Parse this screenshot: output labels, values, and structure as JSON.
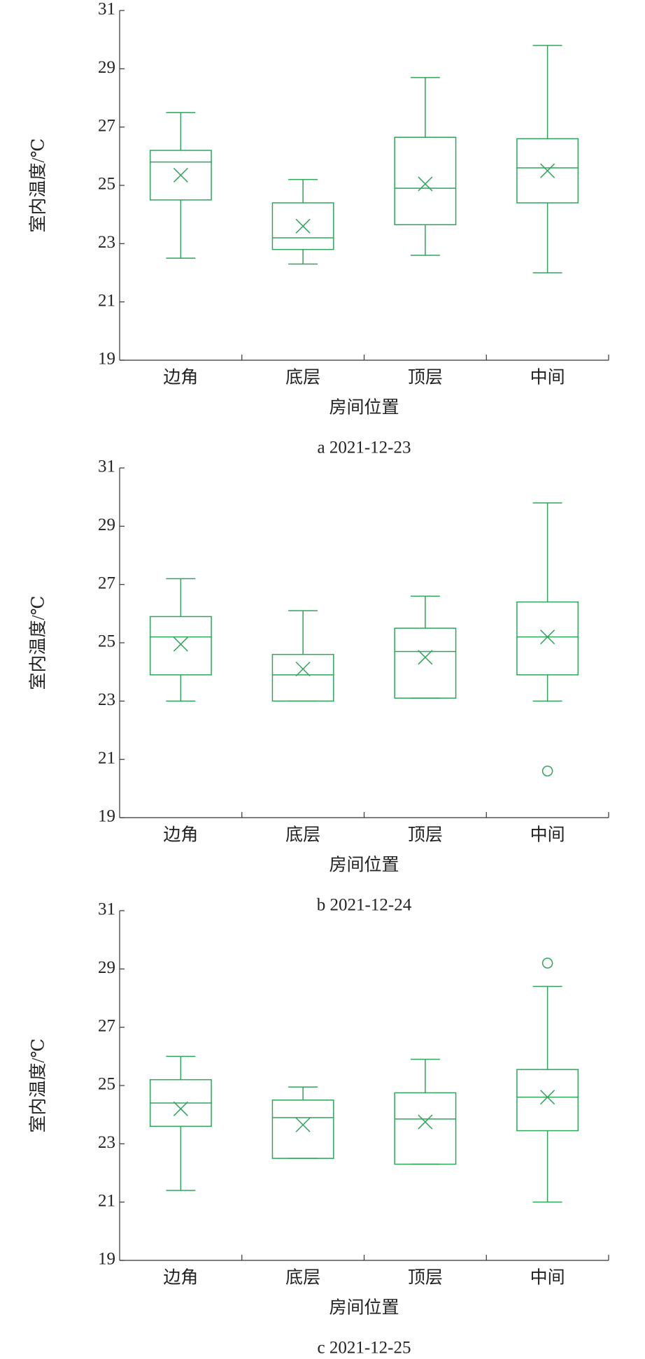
{
  "chart_data": [
    {
      "type": "box",
      "caption": "a 2021-12-23",
      "y_label": "室内温度/℃",
      "x_label": "房间位置",
      "categories": [
        "边角",
        "底层",
        "顶层",
        "中间"
      ],
      "color": "#2ea55a",
      "ylim": [
        19,
        31
      ],
      "yticks": [
        19,
        21,
        23,
        25,
        27,
        29,
        31
      ],
      "boxes": [
        {
          "min": 22.5,
          "q1": 24.5,
          "median": 25.8,
          "q3": 26.2,
          "max": 27.5,
          "mean": 25.35,
          "outliers": []
        },
        {
          "min": 22.3,
          "q1": 22.8,
          "median": 23.2,
          "q3": 24.4,
          "max": 25.2,
          "mean": 23.6,
          "outliers": []
        },
        {
          "min": 22.6,
          "q1": 23.65,
          "median": 24.9,
          "q3": 26.65,
          "max": 28.7,
          "mean": 25.05,
          "outliers": []
        },
        {
          "min": 22.0,
          "q1": 24.4,
          "median": 25.6,
          "q3": 26.6,
          "max": 29.8,
          "mean": 25.5,
          "outliers": []
        }
      ]
    },
    {
      "type": "box",
      "caption": "b 2021-12-24",
      "y_label": "室内温度/℃",
      "x_label": "房间位置",
      "categories": [
        "边角",
        "底层",
        "顶层",
        "中间"
      ],
      "color": "#2ea55a",
      "ylim": [
        19,
        31
      ],
      "yticks": [
        19,
        21,
        23,
        25,
        27,
        29,
        31
      ],
      "boxes": [
        {
          "min": 23.0,
          "q1": 23.9,
          "median": 25.2,
          "q3": 25.9,
          "max": 27.2,
          "mean": 24.95,
          "outliers": []
        },
        {
          "min": 23.0,
          "q1": 23.0,
          "median": 23.9,
          "q3": 24.6,
          "max": 26.1,
          "mean": 24.1,
          "outliers": []
        },
        {
          "min": 23.1,
          "q1": 23.1,
          "median": 24.7,
          "q3": 25.5,
          "max": 26.6,
          "mean": 24.5,
          "outliers": []
        },
        {
          "min": 23.0,
          "q1": 23.9,
          "median": 25.2,
          "q3": 26.4,
          "max": 29.8,
          "mean": 25.2,
          "outliers": [
            20.6
          ]
        }
      ]
    },
    {
      "type": "box",
      "caption": "c 2021-12-25",
      "y_label": "室内温度/℃",
      "x_label": "房间位置",
      "categories": [
        "边角",
        "底层",
        "顶层",
        "中间"
      ],
      "color": "#2ea55a",
      "ylim": [
        19,
        31
      ],
      "yticks": [
        19,
        21,
        23,
        25,
        27,
        29,
        31
      ],
      "boxes": [
        {
          "min": 21.4,
          "q1": 23.6,
          "median": 24.4,
          "q3": 25.2,
          "max": 26.0,
          "mean": 24.2,
          "outliers": []
        },
        {
          "min": 22.5,
          "q1": 22.5,
          "median": 23.9,
          "q3": 24.5,
          "max": 24.95,
          "mean": 23.65,
          "outliers": []
        },
        {
          "min": 22.3,
          "q1": 22.3,
          "median": 23.85,
          "q3": 24.75,
          "max": 25.9,
          "mean": 23.75,
          "outliers": []
        },
        {
          "min": 21.0,
          "q1": 23.45,
          "median": 24.6,
          "q3": 25.55,
          "max": 28.4,
          "mean": 24.6,
          "outliers": [
            29.2
          ]
        }
      ]
    }
  ]
}
